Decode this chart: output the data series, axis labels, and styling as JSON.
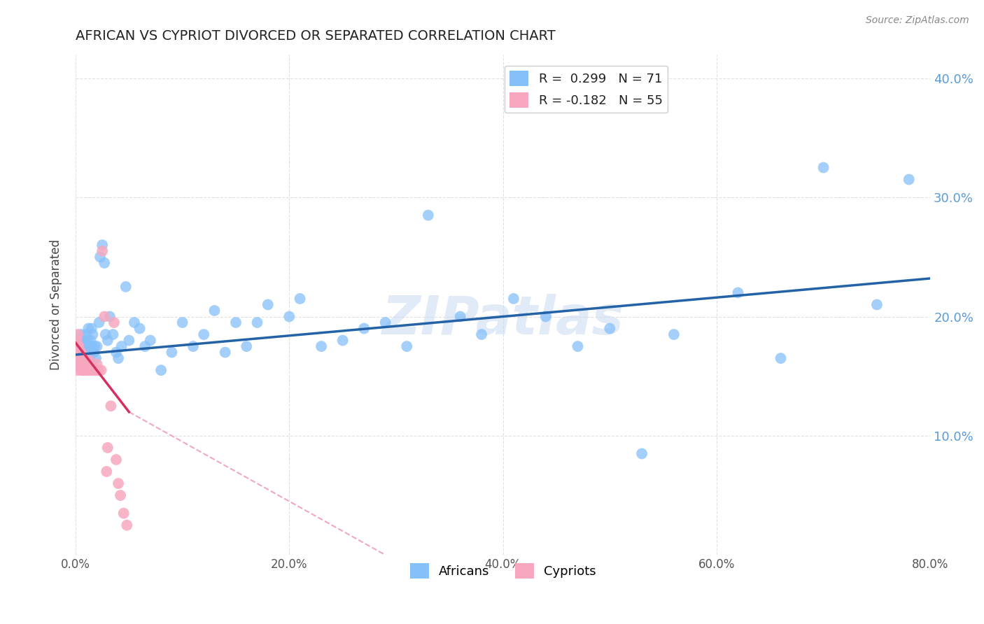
{
  "title": "AFRICAN VS CYPRIOT DIVORCED OR SEPARATED CORRELATION CHART",
  "source": "Source: ZipAtlas.com",
  "ylabel": "Divorced or Separated",
  "xlim": [
    0.0,
    0.8
  ],
  "ylim": [
    0.0,
    0.42
  ],
  "xtick_vals": [
    0.0,
    0.2,
    0.4,
    0.6,
    0.8
  ],
  "xtick_labels": [
    "0.0%",
    "20.0%",
    "40.0%",
    "60.0%",
    "80.0%"
  ],
  "ytick_vals": [
    0.0,
    0.1,
    0.2,
    0.3,
    0.4
  ],
  "ytick_labels": [
    "",
    "10.0%",
    "20.0%",
    "30.0%",
    "40.0%"
  ],
  "african_R": 0.299,
  "african_N": 71,
  "cypriot_R": -0.182,
  "cypriot_N": 55,
  "african_color": "#85C0F9",
  "cypriot_color": "#F7A8BF",
  "trend_african_color": "#2462A8",
  "trend_cypriot_solid_color": "#D43060",
  "trend_cypriot_dashed_color": "#F0A8C0",
  "background_color": "#FFFFFF",
  "grid_color": "#DDDDDD",
  "african_x": [
    0.003,
    0.004,
    0.005,
    0.005,
    0.006,
    0.007,
    0.008,
    0.009,
    0.01,
    0.01,
    0.011,
    0.012,
    0.012,
    0.013,
    0.014,
    0.015,
    0.015,
    0.016,
    0.017,
    0.018,
    0.019,
    0.02,
    0.022,
    0.023,
    0.025,
    0.027,
    0.028,
    0.03,
    0.032,
    0.035,
    0.038,
    0.04,
    0.043,
    0.047,
    0.05,
    0.055,
    0.06,
    0.065,
    0.07,
    0.08,
    0.09,
    0.1,
    0.11,
    0.12,
    0.13,
    0.14,
    0.15,
    0.16,
    0.17,
    0.18,
    0.2,
    0.21,
    0.23,
    0.25,
    0.27,
    0.29,
    0.31,
    0.33,
    0.36,
    0.38,
    0.41,
    0.44,
    0.47,
    0.5,
    0.53,
    0.56,
    0.62,
    0.66,
    0.7,
    0.75,
    0.78
  ],
  "african_y": [
    0.175,
    0.18,
    0.17,
    0.185,
    0.165,
    0.175,
    0.18,
    0.17,
    0.175,
    0.185,
    0.18,
    0.19,
    0.175,
    0.165,
    0.18,
    0.175,
    0.19,
    0.185,
    0.17,
    0.175,
    0.165,
    0.175,
    0.195,
    0.25,
    0.26,
    0.245,
    0.185,
    0.18,
    0.2,
    0.185,
    0.17,
    0.165,
    0.175,
    0.225,
    0.18,
    0.195,
    0.19,
    0.175,
    0.18,
    0.155,
    0.17,
    0.195,
    0.175,
    0.185,
    0.205,
    0.17,
    0.195,
    0.175,
    0.195,
    0.21,
    0.2,
    0.215,
    0.175,
    0.18,
    0.19,
    0.195,
    0.175,
    0.285,
    0.2,
    0.185,
    0.215,
    0.2,
    0.175,
    0.19,
    0.085,
    0.185,
    0.22,
    0.165,
    0.325,
    0.21,
    0.315
  ],
  "cypriot_x": [
    0.001,
    0.001,
    0.001,
    0.001,
    0.002,
    0.002,
    0.002,
    0.002,
    0.002,
    0.003,
    0.003,
    0.003,
    0.003,
    0.004,
    0.004,
    0.004,
    0.005,
    0.005,
    0.005,
    0.006,
    0.006,
    0.006,
    0.007,
    0.007,
    0.008,
    0.008,
    0.009,
    0.009,
    0.01,
    0.01,
    0.011,
    0.011,
    0.012,
    0.013,
    0.013,
    0.014,
    0.015,
    0.016,
    0.017,
    0.018,
    0.019,
    0.02,
    0.022,
    0.024,
    0.025,
    0.027,
    0.029,
    0.03,
    0.033,
    0.036,
    0.038,
    0.04,
    0.042,
    0.045,
    0.048
  ],
  "cypriot_y": [
    0.16,
    0.17,
    0.175,
    0.18,
    0.155,
    0.165,
    0.17,
    0.175,
    0.185,
    0.16,
    0.165,
    0.17,
    0.175,
    0.16,
    0.165,
    0.17,
    0.155,
    0.165,
    0.17,
    0.155,
    0.163,
    0.168,
    0.158,
    0.163,
    0.155,
    0.162,
    0.155,
    0.162,
    0.155,
    0.16,
    0.155,
    0.162,
    0.155,
    0.155,
    0.163,
    0.155,
    0.155,
    0.155,
    0.157,
    0.155,
    0.155,
    0.16,
    0.155,
    0.155,
    0.255,
    0.2,
    0.07,
    0.09,
    0.125,
    0.195,
    0.08,
    0.06,
    0.05,
    0.035,
    0.025
  ],
  "african_trend": [
    0.0,
    0.8,
    0.168,
    0.232
  ],
  "cypriot_trend_solid": [
    0.0,
    0.05,
    0.178,
    0.12
  ],
  "cypriot_trend_dashed": [
    0.05,
    0.65,
    0.12,
    -0.18
  ],
  "watermark": "ZIPatlas",
  "legend_african_label": "Africans",
  "legend_cypriot_label": "Cypriots"
}
